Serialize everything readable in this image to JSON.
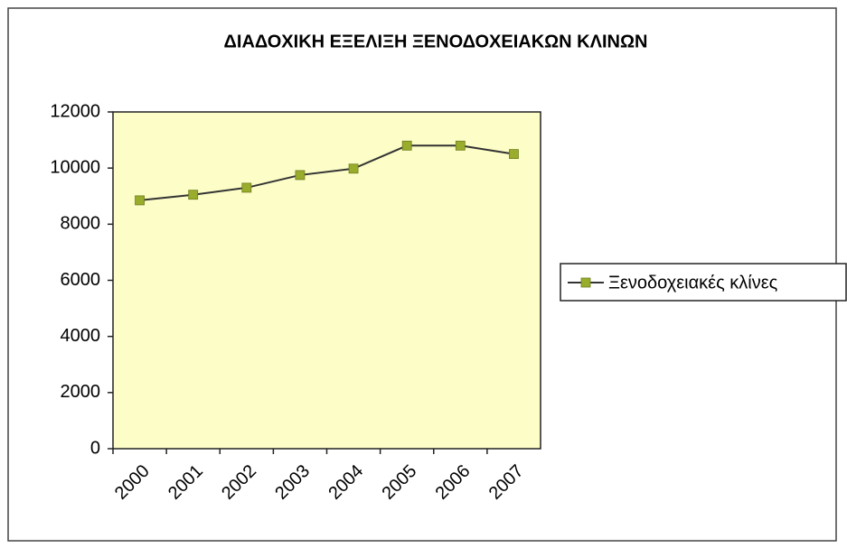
{
  "chart_data": {
    "type": "line",
    "title": "ΔΙΑΔΟΧΙΚΗ ΕΞΕΛΙΞΗ ΞΕΝΟΔΟΧΕΙΑΚΩΝ ΚΛΙΝΩΝ",
    "categories": [
      "2000",
      "2001",
      "2002",
      "2003",
      "2004",
      "2005",
      "2006",
      "2007"
    ],
    "series": [
      {
        "name": "Ξενοδοχειακές κλίνες",
        "color": "#9aac2c",
        "line_color": "#333333",
        "values": [
          8850,
          9050,
          9300,
          9750,
          9980,
          10800,
          10800,
          10500
        ]
      }
    ],
    "ylim": [
      0,
      12000
    ],
    "yticks": [
      0,
      2000,
      4000,
      6000,
      8000,
      10000,
      12000
    ],
    "grid": false,
    "legend": "right",
    "plot_background": "#fdfdc8"
  }
}
